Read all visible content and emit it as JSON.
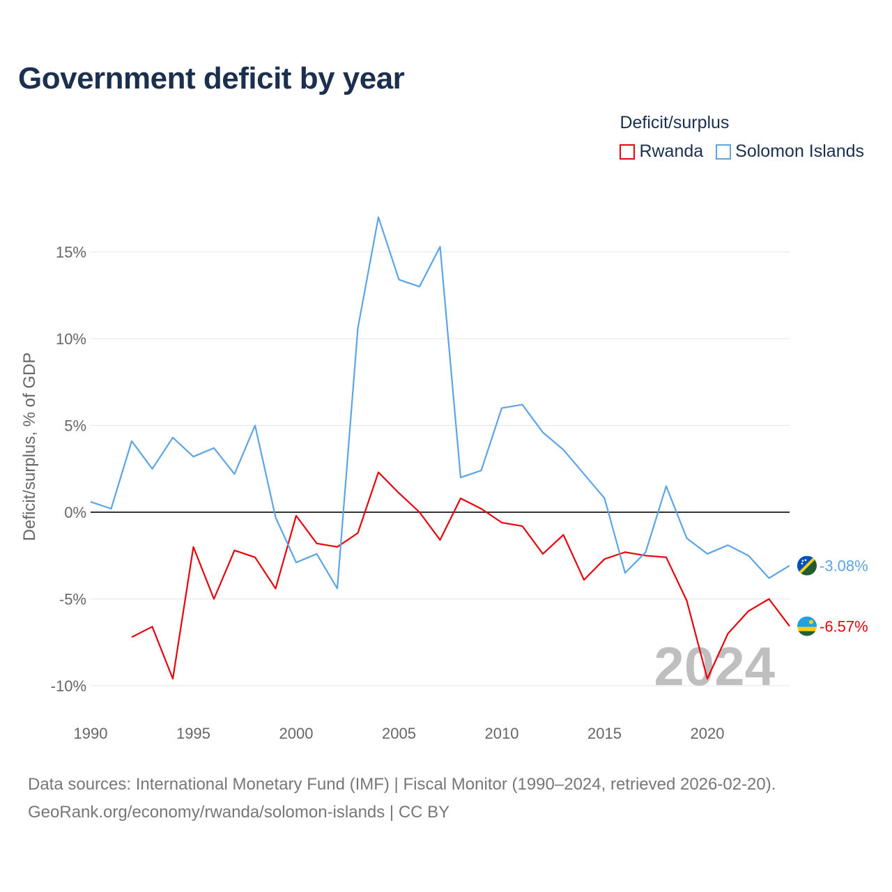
{
  "title": "Government deficit by year",
  "legend": {
    "title": "Deficit/surplus",
    "items": [
      "Rwanda",
      "Solomon Islands"
    ]
  },
  "footer": {
    "line1": "Data sources: International Monetary Fund (IMF) | Fiscal Monitor (1990–2024, retrieved 2026-02-20).",
    "line2": "GeoRank.org/economy/rwanda/solomon-islands | CC BY"
  },
  "chart_data": {
    "type": "line",
    "title": "Government deficit by year",
    "xlabel": "",
    "ylabel": "Deficit/surplus, % of GDP",
    "xlim": [
      1990,
      2024
    ],
    "ylim": [
      -10.5,
      17.5
    ],
    "x_ticks": [
      1990,
      1995,
      2000,
      2005,
      2010,
      2015,
      2020
    ],
    "x_tick_labels": [
      "1990",
      "1995",
      "2000",
      "2005",
      "2010",
      "2015",
      "2020"
    ],
    "y_ticks": [
      -10,
      -5,
      0,
      5,
      10,
      15
    ],
    "y_tick_labels": [
      "-10%",
      "-5%",
      "0%",
      "5%",
      "10%",
      "15%"
    ],
    "zero_line": true,
    "grid": true,
    "year_marker": "2024",
    "x": [
      1990,
      1991,
      1992,
      1993,
      1994,
      1995,
      1996,
      1997,
      1998,
      1999,
      2000,
      2001,
      2002,
      2003,
      2004,
      2005,
      2006,
      2007,
      2008,
      2009,
      2010,
      2011,
      2012,
      2013,
      2014,
      2015,
      2016,
      2017,
      2018,
      2019,
      2020,
      2021,
      2022,
      2023,
      2024
    ],
    "series": [
      {
        "name": "Rwanda",
        "color": "#e8000b",
        "end_label": "-6.57%",
        "values": [
          null,
          null,
          -7.2,
          -6.6,
          -9.6,
          -2.0,
          -5.0,
          -2.2,
          -2.6,
          -4.4,
          -0.2,
          -1.8,
          -2.0,
          -1.2,
          2.3,
          1.1,
          0.0,
          -1.6,
          0.8,
          0.2,
          -0.6,
          -0.8,
          -2.4,
          -1.3,
          -3.9,
          -2.7,
          -2.3,
          -2.5,
          -2.6,
          -5.1,
          -9.6,
          -7.0,
          -5.7,
          -5.0,
          -6.57
        ]
      },
      {
        "name": "Solomon Islands",
        "color": "#5ca4e6",
        "end_label": "-3.08%",
        "values": [
          0.6,
          0.2,
          4.1,
          2.5,
          4.3,
          3.2,
          3.7,
          2.2,
          5.0,
          -0.3,
          -2.9,
          -2.4,
          -4.4,
          10.6,
          17.0,
          13.4,
          13.0,
          15.3,
          2.0,
          2.4,
          6.0,
          6.2,
          4.6,
          3.6,
          2.2,
          0.8,
          -3.5,
          -2.3,
          1.5,
          -1.5,
          -2.4,
          -1.9,
          -2.5,
          -3.8,
          -3.08
        ]
      }
    ]
  },
  "flags": {
    "rwanda": "rwanda-flag-icon",
    "solomon_islands": "solomon-islands-flag-icon"
  }
}
